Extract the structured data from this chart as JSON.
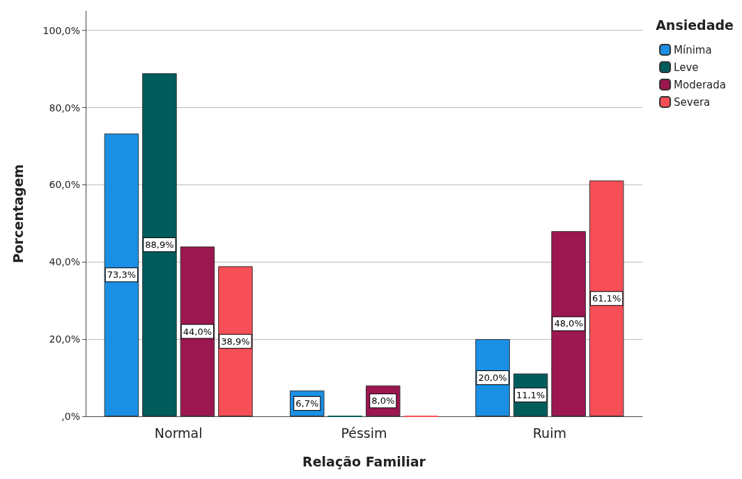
{
  "chart_data": {
    "type": "bar",
    "xlabel": "Relação Familiar",
    "ylabel": "Porcentagem",
    "legend_title": "Ansiedade",
    "categories": [
      "Normal",
      "Péssim",
      "Ruim"
    ],
    "series": [
      {
        "name": "Mínima",
        "color": "#1a8fe3",
        "values": [
          73.3,
          6.7,
          20.0
        ],
        "value_labels": [
          "73,3%",
          "6,7%",
          "20,0%"
        ]
      },
      {
        "name": "Leve",
        "color": "#015c5c",
        "values": [
          88.9,
          0,
          11.1
        ],
        "value_labels": [
          "88,9%",
          null,
          "11,1%"
        ]
      },
      {
        "name": "Moderada",
        "color": "#9c1650",
        "values": [
          44.0,
          8.0,
          48.0
        ],
        "value_labels": [
          "44,0%",
          "8,0%",
          "48,0%"
        ]
      },
      {
        "name": "Severa",
        "color": "#f74f57",
        "values": [
          38.9,
          0,
          61.1
        ],
        "value_labels": [
          "38,9%",
          null,
          "61,1%"
        ]
      }
    ],
    "ylim": [
      0,
      105
    ],
    "yticks": [
      {
        "value": 0,
        "label": ",0%"
      },
      {
        "value": 20,
        "label": "20,0%"
      },
      {
        "value": 40,
        "label": "40,0%"
      },
      {
        "value": 60,
        "label": "60,0%"
      },
      {
        "value": 80,
        "label": "80,0%"
      },
      {
        "value": 100,
        "label": "100,0%"
      }
    ],
    "grid": "y",
    "legend": "top right"
  }
}
